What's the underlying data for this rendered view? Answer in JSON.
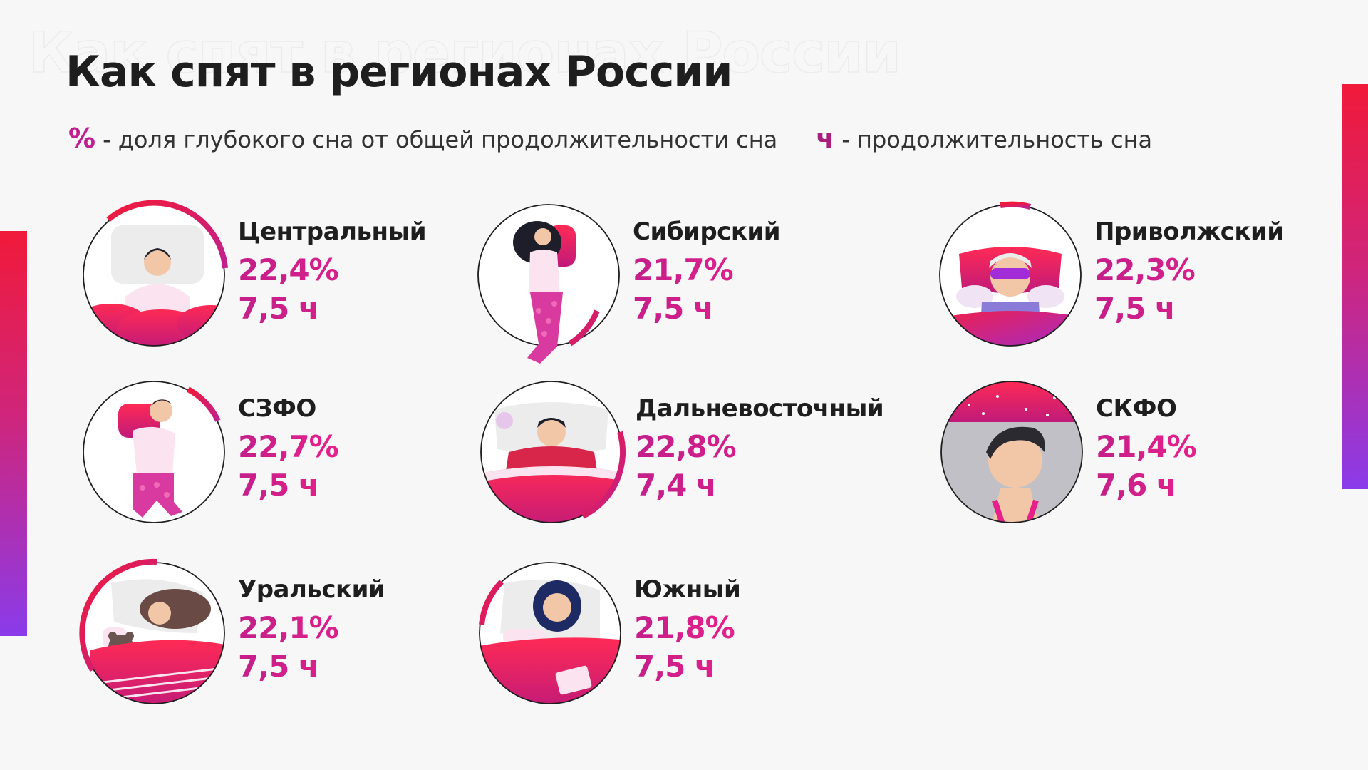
{
  "title": "Как спят в регионах России",
  "legend": {
    "percent_symbol": "%",
    "percent_text": "- доля глубокого сна от общей продолжительности сна",
    "hours_symbol": "ч",
    "hours_text": "- продолжительность сна"
  },
  "colors": {
    "accent_pink": "#e8208a",
    "accent_red": "#f01a3a",
    "accent_purple": "#8a3bea"
  },
  "regions": [
    {
      "name": "Центральный",
      "percent": "22,4%",
      "hours": "7,5 ч",
      "icon": "sleeping-woman-pillow-icon"
    },
    {
      "name": "Сибирский",
      "percent": "21,7%",
      "hours": "7,5 ч",
      "icon": "woman-hugging-pillow-icon"
    },
    {
      "name": "Приволжский",
      "percent": "22,3%",
      "hours": "7,5 ч",
      "icon": "sleep-mask-icon"
    },
    {
      "name": "СЗФО",
      "percent": "22,7%",
      "hours": "7,5 ч",
      "icon": "man-hugging-pillow-icon"
    },
    {
      "name": "Дальневосточный",
      "percent": "22,8%",
      "hours": "7,4 ч",
      "icon": "snoring-man-icon"
    },
    {
      "name": "СКФО",
      "percent": "21,4%",
      "hours": "7,6 ч",
      "icon": "man-starry-night-icon"
    },
    {
      "name": "Уральский",
      "percent": "22,1%",
      "hours": "7,5 ч",
      "icon": "woman-with-teddy-icon"
    },
    {
      "name": "Южный",
      "percent": "21,8%",
      "hours": "7,5 ч",
      "icon": "woman-with-book-icon"
    }
  ]
}
